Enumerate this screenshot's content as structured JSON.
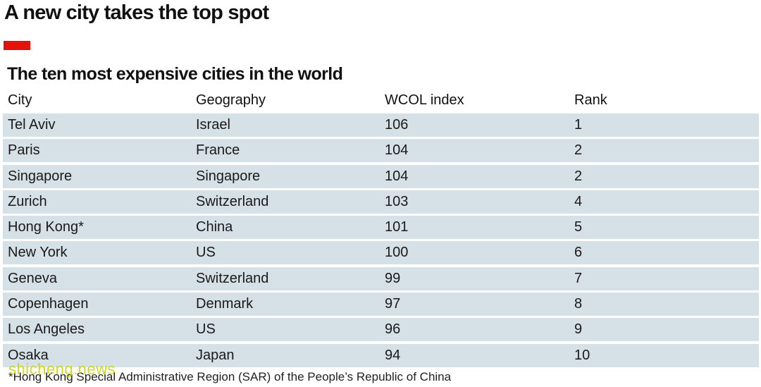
{
  "headline": "A new city takes the top spot",
  "colors": {
    "accent_bar": "#e3120b",
    "row_fill": "#d5e1e6",
    "watermark": "#c8d400"
  },
  "chart_data": {
    "type": "table",
    "title": "The ten most expensive cities in the world",
    "columns": [
      "City",
      "Geography",
      "WCOL index",
      "Rank"
    ],
    "rows": [
      [
        "Tel Aviv",
        "Israel",
        "106",
        "1"
      ],
      [
        "Paris",
        "France",
        "104",
        "2"
      ],
      [
        "Singapore",
        "Singapore",
        "104",
        "2"
      ],
      [
        "Zurich",
        "Switzerland",
        "103",
        "4"
      ],
      [
        "Hong Kong*",
        "China",
        "101",
        "5"
      ],
      [
        "New York",
        "US",
        "100",
        "6"
      ],
      [
        "Geneva",
        "Switzerland",
        "99",
        "7"
      ],
      [
        "Copenhagen",
        "Denmark",
        "97",
        "8"
      ],
      [
        "Los Angeles",
        "US",
        "96",
        "9"
      ],
      [
        "Osaka",
        "Japan",
        "94",
        "10"
      ]
    ],
    "footnote": "*Hong Kong Special Administrative Region (SAR) of the People’s Republic of China"
  },
  "watermark": "shicheng.news"
}
